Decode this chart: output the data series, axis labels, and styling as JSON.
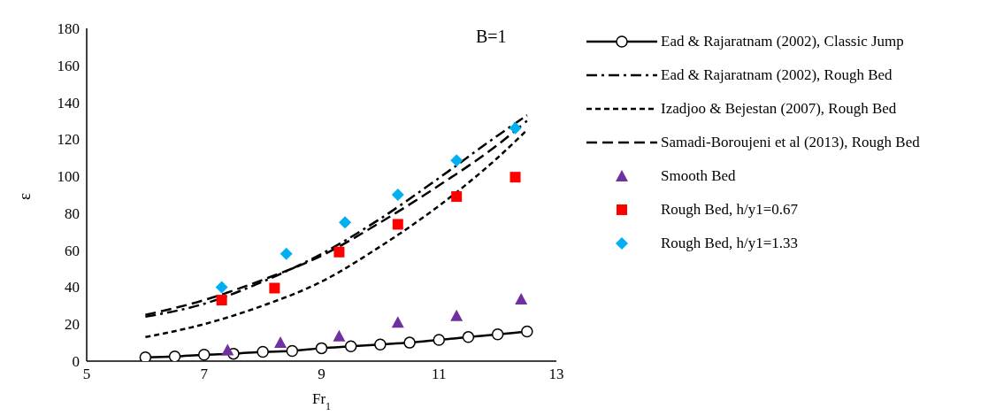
{
  "chart_data": {
    "type": "line",
    "xlabel": "Fr$_{1}$",
    "ylabel": "ε",
    "annotations": [
      "B=1"
    ],
    "xlim": [
      5,
      13
    ],
    "xticks": [
      5,
      7,
      9,
      11,
      13
    ],
    "ylim": [
      0,
      180
    ],
    "yticks": [
      0,
      20,
      40,
      60,
      80,
      100,
      120,
      140,
      160,
      180
    ],
    "grid": false,
    "legend": "right",
    "series": [
      {
        "name": "Ead & Rajaratnam (2002), Classic Jump",
        "color": "#000000",
        "marker": "circle",
        "line_style": "solid",
        "x": [
          6,
          6.5,
          7,
          7.5,
          8,
          8.5,
          9,
          9.5,
          10,
          10.5,
          11,
          11.5,
          12,
          12.5
        ],
        "values": [
          2,
          2.5,
          3.5,
          4,
          5,
          5.5,
          7,
          8,
          9,
          10,
          11.5,
          13,
          14.5,
          16
        ]
      },
      {
        "name": "Ead & Rajaratnam (2002), Rough Bed",
        "color": "#000000",
        "marker": "none",
        "line_style": "dashdot",
        "x": [
          6,
          7,
          8,
          9,
          10,
          11,
          12,
          12.5
        ],
        "values": [
          24,
          31,
          43,
          58,
          77,
          99,
          122,
          133
        ]
      },
      {
        "name": "Izadjoo & Bejestan (2007), Rough Bed",
        "color": "#000000",
        "marker": "none",
        "line_style": "dotted",
        "x": [
          6,
          7,
          8,
          9,
          10,
          11,
          12,
          12.5
        ],
        "values": [
          13,
          20,
          30,
          43,
          62,
          84,
          110,
          125
        ]
      },
      {
        "name": "Samadi-Boroujeni et al (2013), Rough Bed",
        "color": "#000000",
        "marker": "none",
        "line_style": "dashed",
        "x": [
          6,
          7,
          8,
          9,
          10,
          11,
          12,
          12.5
        ],
        "values": [
          25,
          33,
          44,
          57,
          75,
          95,
          117,
          130
        ]
      },
      {
        "name": "Smooth Bed",
        "type": "scatter",
        "color": "#7030a0",
        "marker": "triangle",
        "x": [
          7.4,
          8.3,
          9.3,
          10.3,
          11.3,
          12.4
        ],
        "values": [
          6,
          10,
          13.5,
          21,
          24.5,
          33.5
        ]
      },
      {
        "name": "Rough Bed, h/y1=0.67",
        "type": "scatter",
        "color": "#ff0000",
        "marker": "square",
        "x": [
          7.3,
          8.2,
          9.3,
          10.3,
          11.3,
          12.3
        ],
        "values": [
          33,
          39.5,
          59,
          74,
          89,
          99.5
        ]
      },
      {
        "name": "Rough Bed, h/y1=1.33",
        "type": "scatter",
        "color": "#00b0f0",
        "marker": "diamond",
        "x": [
          7.3,
          8.4,
          9.4,
          10.3,
          11.3,
          12.3
        ],
        "values": [
          40,
          58,
          75,
          90,
          108.5,
          126
        ]
      }
    ]
  }
}
